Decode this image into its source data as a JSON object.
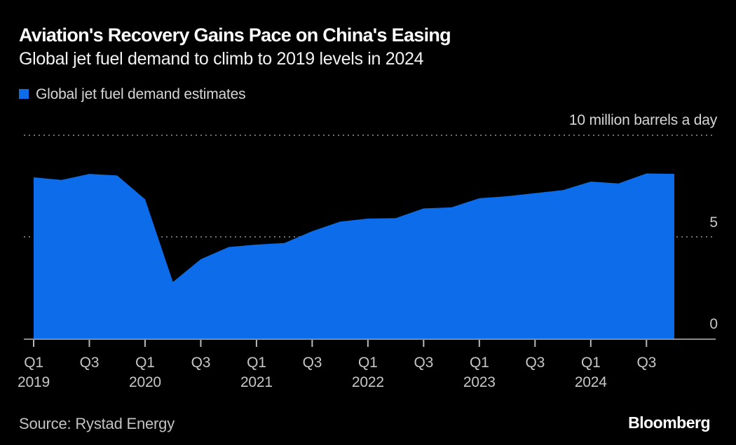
{
  "header": {
    "title": "Aviation's Recovery Gains Pace on China's Easing",
    "subtitle": "Global jet fuel demand to climb to 2019 levels in 2024"
  },
  "legend": {
    "label": "Global jet fuel demand estimates"
  },
  "axis": {
    "unit_label": "10 million barrels a day",
    "y_labels": [
      "5",
      "0"
    ],
    "ticks": [
      {
        "quarter": "Q1",
        "year": "2019"
      },
      {
        "quarter": "Q3",
        "year": ""
      },
      {
        "quarter": "Q1",
        "year": "2020"
      },
      {
        "quarter": "Q3",
        "year": ""
      },
      {
        "quarter": "Q1",
        "year": "2021"
      },
      {
        "quarter": "Q3",
        "year": ""
      },
      {
        "quarter": "Q1",
        "year": "2022"
      },
      {
        "quarter": "Q3",
        "year": ""
      },
      {
        "quarter": "Q1",
        "year": "2023"
      },
      {
        "quarter": "Q3",
        "year": ""
      },
      {
        "quarter": "Q1",
        "year": "2024"
      },
      {
        "quarter": "Q3",
        "year": ""
      }
    ]
  },
  "footer": {
    "source": "Source: Rystad Energy",
    "logo": "Bloomberg"
  },
  "colors": {
    "background": "#000000",
    "area": "#0d6ce9",
    "grid": "#707070",
    "axis_line": "#b8b8b8",
    "text_primary": "#ffffff",
    "text_secondary": "#c6c6c6"
  },
  "chart_data": {
    "type": "area",
    "title": "Aviation's Recovery Gains Pace on China's Easing",
    "subtitle": "Global jet fuel demand to climb to 2019 levels in 2024",
    "unit": "million barrels a day",
    "categories": [
      "Q1 2019",
      "Q2 2019",
      "Q3 2019",
      "Q4 2019",
      "Q1 2020",
      "Q2 2020",
      "Q3 2020",
      "Q4 2020",
      "Q1 2021",
      "Q2 2021",
      "Q3 2021",
      "Q4 2021",
      "Q1 2022",
      "Q2 2022",
      "Q3 2022",
      "Q4 2022",
      "Q1 2023",
      "Q2 2023",
      "Q3 2023",
      "Q4 2023",
      "Q1 2024",
      "Q2 2024",
      "Q3 2024",
      "Q4 2024"
    ],
    "series": [
      {
        "name": "Global jet fuel demand estimates",
        "values": [
          7.93,
          7.8,
          8.1,
          8.02,
          6.85,
          2.78,
          3.9,
          4.5,
          4.62,
          4.7,
          5.28,
          5.75,
          5.9,
          5.92,
          6.4,
          6.45,
          6.9,
          7.0,
          7.15,
          7.3,
          7.72,
          7.63,
          8.12,
          8.1
        ]
      }
    ],
    "ylim": [
      0,
      10
    ],
    "yticks": [
      0,
      5,
      10
    ],
    "xlabel": "",
    "ylabel": "10 million barrels a day",
    "grid": "horizontal dotted",
    "legend_position": "top-left"
  }
}
